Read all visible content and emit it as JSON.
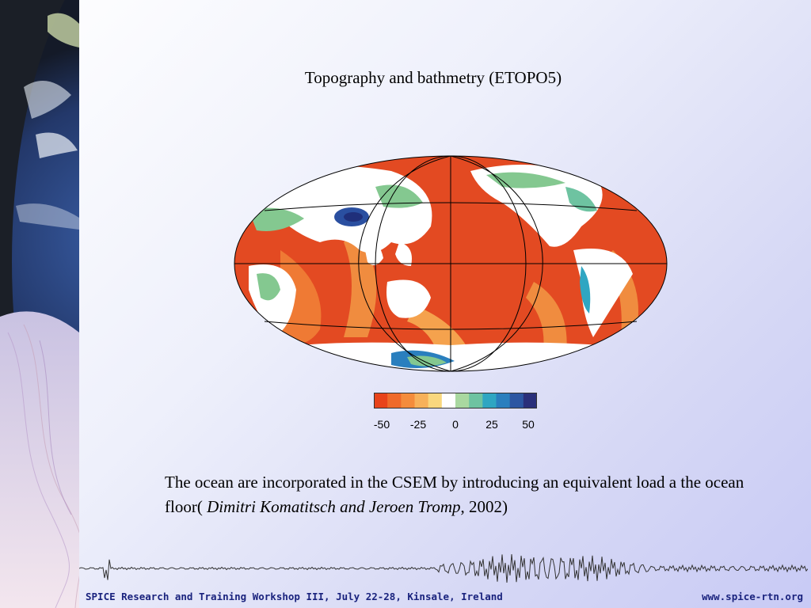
{
  "slide": {
    "title": "Topography and bathmetry (ETOPO5)",
    "body_plain": "The ocean are incorporated in the CSEM by introducing an equivalent load a the ocean floor(",
    "body_authors": "Dimitri Komatitsch and Jeroen Tromp",
    "body_year": ", 2002)"
  },
  "colorbar": {
    "ticks": [
      "-50",
      "-25",
      "0",
      "25",
      "50"
    ],
    "colors": [
      "#e8431a",
      "#ef6a2a",
      "#f48c3c",
      "#f7b15a",
      "#f9d77e",
      "#ffffff",
      "#a9d8a0",
      "#6ec3a1",
      "#2fa6c2",
      "#2a7fbe",
      "#2c56a2",
      "#2a2f7a"
    ]
  },
  "footer": {
    "left": "SPICE Research and Training Workshop III, July 22-28, Kinsale, Ireland",
    "right": "www.spice-rtn.org"
  }
}
